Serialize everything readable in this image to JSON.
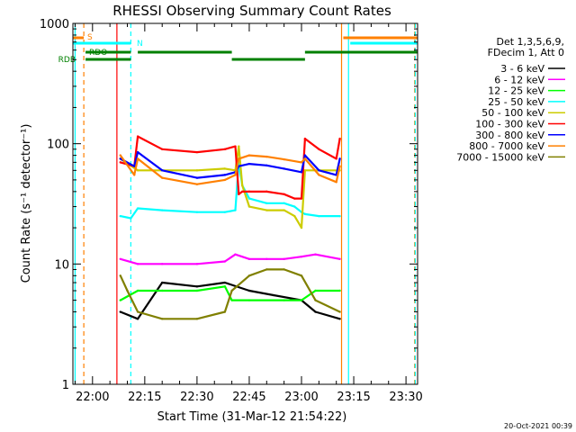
{
  "chart_data": {
    "type": "line",
    "title": "RHESSI Observing Summary Count Rates",
    "xlabel": "Start Time (31-Mar-12 21:54:22)",
    "ylabel": "Count Rate (s⁻¹ detector⁻¹)",
    "y_scale": "log",
    "ylim": [
      1,
      1000
    ],
    "y_ticks": [
      {
        "value": 1,
        "label": "1"
      },
      {
        "value": 10,
        "label": "10"
      },
      {
        "value": 100,
        "label": "100"
      },
      {
        "value": 1000,
        "label": "1000"
      }
    ],
    "xlim": [
      "21:54:22",
      "23:33:20"
    ],
    "x_ticks": [
      "22:00",
      "22:15",
      "22:30",
      "22:45",
      "23:00",
      "23:15",
      "23:30"
    ],
    "legend_header": [
      "Det 1,3,5,6,9,",
      "FDecim 1, Att 0"
    ],
    "legend_position": "right, outside plot",
    "series": [
      {
        "name": "3 - 6 keV",
        "color": "#000000",
        "x": [
          "22:08",
          "22:13",
          "22:20",
          "22:30",
          "22:38",
          "22:45",
          "22:52",
          "23:00",
          "23:04",
          "23:11"
        ],
        "y": [
          4.0,
          3.5,
          7,
          6.5,
          7,
          6,
          5.5,
          5,
          4,
          3.5
        ]
      },
      {
        "name": "6 - 12 keV",
        "color": "#ff00ff",
        "x": [
          "22:08",
          "22:13",
          "22:20",
          "22:30",
          "22:38",
          "22:41",
          "22:45",
          "22:50",
          "22:55",
          "23:00",
          "23:04",
          "23:11"
        ],
        "y": [
          11,
          10,
          10,
          10,
          10.5,
          12,
          11,
          11,
          11,
          11.5,
          12,
          11
        ]
      },
      {
        "name": "12 - 25 keV",
        "color": "#00ff00",
        "x": [
          "22:08",
          "22:13",
          "22:20",
          "22:30",
          "22:38",
          "22:40",
          "22:45",
          "22:55",
          "23:00",
          "23:04",
          "23:11"
        ],
        "y": [
          5,
          6,
          6,
          6,
          6.5,
          5,
          5,
          5,
          5,
          6,
          6
        ]
      },
      {
        "name": "25 - 50 keV",
        "color": "#00ffff",
        "x": [
          "22:08",
          "22:11",
          "22:13",
          "22:20",
          "22:30",
          "22:38",
          "22:41",
          "22:42",
          "22:43",
          "22:45",
          "22:50",
          "22:55",
          "22:58",
          "23:00",
          "23:01",
          "23:05",
          "23:11"
        ],
        "y": [
          25,
          24,
          29,
          28,
          27,
          27,
          28,
          70,
          45,
          35,
          32,
          32,
          30,
          27,
          26,
          25,
          25
        ]
      },
      {
        "name": "50 - 100 keV",
        "color": "#cccc00",
        "x": [
          "22:08",
          "22:13",
          "22:20",
          "22:30",
          "22:38",
          "22:41",
          "22:42",
          "22:43",
          "22:45",
          "22:50",
          "22:55",
          "22:58",
          "23:00",
          "23:01",
          "23:05",
          "23:11"
        ],
        "y": [
          75,
          60,
          60,
          60,
          62,
          60,
          95,
          45,
          30,
          28,
          28,
          25,
          20,
          60,
          60,
          60
        ]
      },
      {
        "name": "100 - 300 keV",
        "color": "#ff0000",
        "x": [
          "22:08",
          "22:12",
          "22:13",
          "22:20",
          "22:30",
          "22:38",
          "22:41",
          "22:42",
          "22:43",
          "22:45",
          "22:50",
          "22:55",
          "22:58",
          "23:00",
          "23:01",
          "23:05",
          "23:10",
          "23:11"
        ],
        "y": [
          70,
          65,
          115,
          90,
          85,
          90,
          95,
          38,
          40,
          40,
          40,
          38,
          35,
          35,
          110,
          90,
          75,
          110
        ]
      },
      {
        "name": "300 - 800 keV",
        "color": "#0000ff",
        "x": [
          "22:08",
          "22:12",
          "22:13",
          "22:20",
          "22:30",
          "22:38",
          "22:41",
          "22:42",
          "22:45",
          "22:50",
          "22:55",
          "23:00",
          "23:01",
          "23:05",
          "23:10",
          "23:11"
        ],
        "y": [
          75,
          65,
          85,
          60,
          52,
          55,
          58,
          65,
          68,
          66,
          62,
          58,
          80,
          60,
          55,
          75
        ]
      },
      {
        "name": "800 - 7000 keV",
        "color": "#ff8000",
        "x": [
          "22:08",
          "22:12",
          "22:13",
          "22:20",
          "22:30",
          "22:38",
          "22:41",
          "22:42",
          "22:45",
          "22:50",
          "22:55",
          "23:00",
          "23:01",
          "23:05",
          "23:10",
          "23:11"
        ],
        "y": [
          80,
          55,
          75,
          52,
          46,
          50,
          55,
          75,
          80,
          78,
          74,
          70,
          75,
          55,
          48,
          65
        ]
      },
      {
        "name": "7000 - 15000 keV",
        "color": "#808000",
        "x": [
          "22:08",
          "22:10",
          "22:13",
          "22:20",
          "22:30",
          "22:38",
          "22:40",
          "22:45",
          "22:50",
          "22:55",
          "23:00",
          "23:04",
          "23:11"
        ],
        "y": [
          8,
          6,
          4,
          3.5,
          3.5,
          4,
          6,
          8,
          9,
          9,
          8,
          5,
          4
        ]
      }
    ],
    "flags": [
      {
        "name": "S",
        "color": "#ff8000",
        "segments": [
          [
            "21:54:22",
            "21:57:30"
          ],
          [
            "23:12",
            "23:33:20"
          ]
        ]
      },
      {
        "name": "N",
        "color": "#00ffff",
        "segments": [
          [
            "21:54:22",
            "22:11"
          ],
          [
            "23:14",
            "23:33:20"
          ]
        ]
      },
      {
        "name": "RDO",
        "color": "#008000",
        "segments": [
          [
            "21:58",
            "22:11"
          ],
          [
            "22:13",
            "22:40"
          ],
          [
            "23:01",
            "23:33:20"
          ]
        ]
      },
      {
        "name": "RDB",
        "color": "#008000",
        "segments": [
          [
            "21:58",
            "22:11"
          ],
          [
            "22:40",
            "23:01"
          ]
        ]
      }
    ],
    "vertical_markers": [
      {
        "x": "21:55",
        "color": "#00ffff",
        "style": "solid"
      },
      {
        "x": "21:57:30",
        "color": "#ff8000",
        "style": "dashed"
      },
      {
        "x": "22:07",
        "color": "#ff0000",
        "style": "solid"
      },
      {
        "x": "22:11",
        "color": "#00ffff",
        "style": "dashed"
      },
      {
        "x": "23:11:30",
        "color": "#ff8000",
        "style": "solid"
      },
      {
        "x": "23:13:30",
        "color": "#00ffff",
        "style": "solid"
      },
      {
        "x": "23:32:30",
        "color": "#ff8000",
        "style": "dashed"
      },
      {
        "x": "23:32:40",
        "color": "#00ffff",
        "style": "dashed"
      }
    ],
    "grid": false,
    "footer_stamp": "20-Oct-2021 00:39"
  }
}
